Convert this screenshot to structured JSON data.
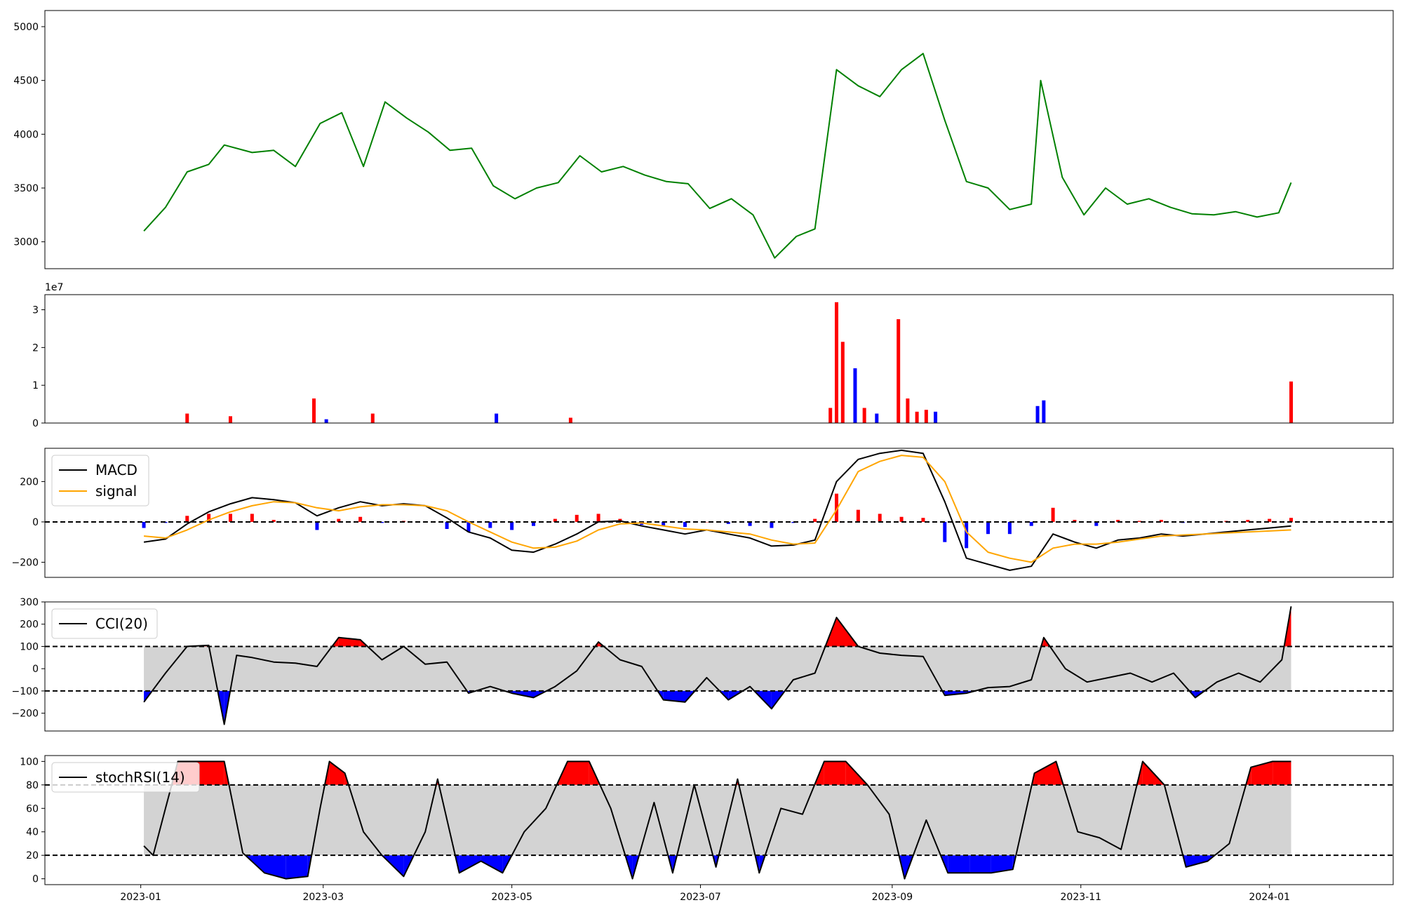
{
  "chart_data": [
    {
      "type": "line",
      "panel": "price",
      "color": "#008000",
      "ylim": [
        2750,
        5150
      ],
      "yticks": [
        "3000",
        "3500",
        "4000",
        "4500",
        "5000"
      ],
      "x": [
        "2023-01-02",
        "2023-01-09",
        "2023-01-16",
        "2023-01-23",
        "2023-01-28",
        "2023-02-06",
        "2023-02-13",
        "2023-02-20",
        "2023-02-28",
        "2023-03-07",
        "2023-03-14",
        "2023-03-21",
        "2023-03-28",
        "2023-04-04",
        "2023-04-11",
        "2023-04-18",
        "2023-04-25",
        "2023-05-02",
        "2023-05-09",
        "2023-05-16",
        "2023-05-23",
        "2023-05-30",
        "2023-06-06",
        "2023-06-13",
        "2023-06-20",
        "2023-06-27",
        "2023-07-04",
        "2023-07-11",
        "2023-07-18",
        "2023-07-25",
        "2023-08-01",
        "2023-08-07",
        "2023-08-14",
        "2023-08-21",
        "2023-08-28",
        "2023-09-04",
        "2023-09-11",
        "2023-09-18",
        "2023-09-25",
        "2023-10-02",
        "2023-10-09",
        "2023-10-16",
        "2023-10-19",
        "2023-10-26",
        "2023-11-02",
        "2023-11-09",
        "2023-11-16",
        "2023-11-23",
        "2023-11-30",
        "2023-12-07",
        "2023-12-14",
        "2023-12-21",
        "2023-12-28",
        "2024-01-04",
        "2024-01-08"
      ],
      "values": [
        3100,
        3320,
        3650,
        3720,
        3900,
        3830,
        3850,
        3700,
        4100,
        4200,
        3700,
        4300,
        4150,
        4020,
        3850,
        3870,
        3520,
        3400,
        3500,
        3550,
        3800,
        3650,
        3700,
        3620,
        3560,
        3540,
        3310,
        3400,
        3250,
        2850,
        3050,
        3120,
        4600,
        4450,
        4350,
        4600,
        4750,
        4130,
        3560,
        3500,
        3300,
        3350,
        4500,
        3600,
        3250,
        3500,
        3350,
        3400,
        3320,
        3260,
        3250,
        3280,
        3230,
        3270,
        3550
      ]
    },
    {
      "type": "bar",
      "panel": "volume",
      "multiplier_label": "1e7",
      "ylim": [
        0,
        3.4
      ],
      "yticks": [
        "0",
        "1",
        "2",
        "3"
      ],
      "colors": {
        "up": "#ff0000",
        "down": "#0000ff"
      },
      "x": [
        "2023-01-16",
        "2023-01-30",
        "2023-02-26",
        "2023-03-02",
        "2023-03-17",
        "2023-04-26",
        "2023-05-20",
        "2023-08-12",
        "2023-08-14",
        "2023-08-16",
        "2023-08-20",
        "2023-08-23",
        "2023-08-27",
        "2023-09-03",
        "2023-09-06",
        "2023-09-09",
        "2023-09-12",
        "2023-09-15",
        "2023-10-18",
        "2023-10-20",
        "2024-01-08"
      ],
      "values": [
        0.25,
        0.18,
        0.65,
        0.1,
        0.25,
        0.25,
        0.14,
        0.4,
        3.2,
        2.15,
        1.45,
        0.4,
        0.25,
        2.75,
        0.65,
        0.3,
        0.35,
        0.3,
        0.45,
        0.6,
        1.1
      ],
      "direction": [
        "up",
        "up",
        "up",
        "down",
        "up",
        "down",
        "up",
        "up",
        "up",
        "up",
        "down",
        "up",
        "down",
        "up",
        "up",
        "up",
        "up",
        "down",
        "down",
        "down",
        "up"
      ]
    },
    {
      "type": "line",
      "panel": "macd",
      "ylim": [
        -275,
        365
      ],
      "yticks": [
        "−200",
        "0",
        "200"
      ],
      "legend": [
        "MACD",
        "signal"
      ],
      "legend_position": "upper-left",
      "series": [
        {
          "name": "MACD",
          "color": "#000000",
          "x": [
            "2023-01-02",
            "2023-01-09",
            "2023-01-16",
            "2023-01-23",
            "2023-01-30",
            "2023-02-06",
            "2023-02-13",
            "2023-02-20",
            "2023-02-27",
            "2023-03-06",
            "2023-03-13",
            "2023-03-20",
            "2023-03-27",
            "2023-04-03",
            "2023-04-10",
            "2023-04-17",
            "2023-04-24",
            "2023-05-01",
            "2023-05-08",
            "2023-05-15",
            "2023-05-22",
            "2023-05-29",
            "2023-06-05",
            "2023-06-12",
            "2023-06-19",
            "2023-06-26",
            "2023-07-03",
            "2023-07-10",
            "2023-07-17",
            "2023-07-24",
            "2023-07-31",
            "2023-08-07",
            "2023-08-14",
            "2023-08-21",
            "2023-08-28",
            "2023-09-04",
            "2023-09-11",
            "2023-09-18",
            "2023-09-25",
            "2023-10-02",
            "2023-10-09",
            "2023-10-16",
            "2023-10-23",
            "2023-10-30",
            "2023-11-06",
            "2023-11-13",
            "2023-11-20",
            "2023-11-27",
            "2023-12-04",
            "2023-12-11",
            "2023-12-18",
            "2023-12-25",
            "2024-01-01",
            "2024-01-08"
          ],
          "values": [
            -100,
            -85,
            -10,
            50,
            90,
            120,
            110,
            95,
            30,
            70,
            100,
            80,
            90,
            80,
            20,
            -50,
            -80,
            -140,
            -150,
            -110,
            -60,
            0,
            5,
            -20,
            -40,
            -60,
            -40,
            -60,
            -80,
            -120,
            -115,
            -90,
            200,
            310,
            340,
            355,
            340,
            100,
            -180,
            -210,
            -240,
            -220,
            -60,
            -100,
            -130,
            -90,
            -80,
            -60,
            -70,
            -60,
            -50,
            -40,
            -30,
            -20
          ]
        },
        {
          "name": "signal",
          "color": "#ffa500",
          "x": [
            "2023-01-02",
            "2023-01-09",
            "2023-01-16",
            "2023-01-23",
            "2023-01-30",
            "2023-02-06",
            "2023-02-13",
            "2023-02-20",
            "2023-02-27",
            "2023-03-06",
            "2023-03-13",
            "2023-03-20",
            "2023-03-27",
            "2023-04-03",
            "2023-04-10",
            "2023-04-17",
            "2023-04-24",
            "2023-05-01",
            "2023-05-08",
            "2023-05-15",
            "2023-05-22",
            "2023-05-29",
            "2023-06-05",
            "2023-06-12",
            "2023-06-19",
            "2023-06-26",
            "2023-07-03",
            "2023-07-10",
            "2023-07-17",
            "2023-07-24",
            "2023-07-31",
            "2023-08-07",
            "2023-08-14",
            "2023-08-21",
            "2023-08-28",
            "2023-09-04",
            "2023-09-11",
            "2023-09-18",
            "2023-09-25",
            "2023-10-02",
            "2023-10-09",
            "2023-10-16",
            "2023-10-23",
            "2023-10-30",
            "2023-11-06",
            "2023-11-13",
            "2023-11-20",
            "2023-11-27",
            "2023-12-04",
            "2023-12-11",
            "2023-12-18",
            "2023-12-25",
            "2024-01-01",
            "2024-01-08"
          ],
          "values": [
            -70,
            -80,
            -40,
            10,
            50,
            80,
            100,
            95,
            70,
            55,
            75,
            85,
            85,
            80,
            55,
            0,
            -50,
            -100,
            -130,
            -125,
            -95,
            -40,
            -10,
            -5,
            -20,
            -35,
            -40,
            -50,
            -60,
            -90,
            -110,
            -105,
            60,
            250,
            300,
            330,
            320,
            200,
            -50,
            -150,
            -180,
            -200,
            -130,
            -110,
            -110,
            -100,
            -85,
            -70,
            -65,
            -60,
            -55,
            -50,
            -45,
            -40
          ]
        }
      ],
      "histogram": {
        "colors": {
          "positive": "#ff0000",
          "negative": "#0000ff"
        },
        "x": [
          "2023-01-02",
          "2023-01-09",
          "2023-01-16",
          "2023-01-23",
          "2023-01-30",
          "2023-02-06",
          "2023-02-13",
          "2023-02-20",
          "2023-02-27",
          "2023-03-06",
          "2023-03-13",
          "2023-03-20",
          "2023-03-27",
          "2023-04-03",
          "2023-04-10",
          "2023-04-17",
          "2023-04-24",
          "2023-05-01",
          "2023-05-08",
          "2023-05-15",
          "2023-05-22",
          "2023-05-29",
          "2023-06-05",
          "2023-06-12",
          "2023-06-19",
          "2023-06-26",
          "2023-07-03",
          "2023-07-10",
          "2023-07-17",
          "2023-07-24",
          "2023-07-31",
          "2023-08-07",
          "2023-08-14",
          "2023-08-21",
          "2023-08-28",
          "2023-09-04",
          "2023-09-11",
          "2023-09-18",
          "2023-09-25",
          "2023-10-02",
          "2023-10-09",
          "2023-10-16",
          "2023-10-23",
          "2023-10-30",
          "2023-11-06",
          "2023-11-13",
          "2023-11-20",
          "2023-11-27",
          "2023-12-04",
          "2023-12-11",
          "2023-12-18",
          "2023-12-25",
          "2024-01-01",
          "2024-01-08"
        ],
        "values": [
          -30,
          -5,
          30,
          40,
          40,
          40,
          10,
          0,
          -40,
          15,
          25,
          -5,
          5,
          0,
          -35,
          -50,
          -30,
          -40,
          -20,
          15,
          35,
          40,
          15,
          -15,
          -20,
          -25,
          0,
          -10,
          -20,
          -30,
          -5,
          15,
          140,
          60,
          40,
          25,
          20,
          -100,
          -130,
          -60,
          -60,
          -20,
          70,
          10,
          -20,
          10,
          5,
          10,
          -5,
          0,
          5,
          10,
          15,
          20
        ]
      }
    },
    {
      "type": "line",
      "panel": "cci",
      "color": "#000000",
      "ylim": [
        -280,
        300
      ],
      "yticks": [
        "−200",
        "−100",
        "0",
        "100",
        "200",
        "300"
      ],
      "thresholds": [
        100,
        -100
      ],
      "legend": [
        "CCI(20)"
      ],
      "legend_position": "upper-left",
      "fill_colors": {
        "band": "#d3d3d3",
        "above": "#ff0000",
        "below": "#0000ff"
      },
      "x": [
        "2023-01-02",
        "2023-01-09",
        "2023-01-16",
        "2023-01-23",
        "2023-01-28",
        "2023-02-01",
        "2023-02-06",
        "2023-02-13",
        "2023-02-20",
        "2023-02-27",
        "2023-03-06",
        "2023-03-13",
        "2023-03-20",
        "2023-03-27",
        "2023-04-03",
        "2023-04-10",
        "2023-04-17",
        "2023-04-24",
        "2023-05-01",
        "2023-05-08",
        "2023-05-15",
        "2023-05-22",
        "2023-05-29",
        "2023-06-05",
        "2023-06-12",
        "2023-06-19",
        "2023-06-26",
        "2023-07-03",
        "2023-07-10",
        "2023-07-17",
        "2023-07-24",
        "2023-07-31",
        "2023-08-07",
        "2023-08-14",
        "2023-08-21",
        "2023-08-28",
        "2023-09-04",
        "2023-09-11",
        "2023-09-18",
        "2023-09-25",
        "2023-10-02",
        "2023-10-09",
        "2023-10-16",
        "2023-10-20",
        "2023-10-27",
        "2023-11-03",
        "2023-11-10",
        "2023-11-17",
        "2023-11-24",
        "2023-12-01",
        "2023-12-08",
        "2023-12-15",
        "2023-12-22",
        "2023-12-29",
        "2024-01-05",
        "2024-01-08"
      ],
      "values": [
        -150,
        -20,
        100,
        105,
        -250,
        60,
        50,
        30,
        25,
        10,
        140,
        130,
        40,
        100,
        20,
        30,
        -110,
        -80,
        -110,
        -130,
        -80,
        -10,
        120,
        40,
        10,
        -140,
        -150,
        -40,
        -140,
        -80,
        -180,
        -50,
        -20,
        230,
        100,
        70,
        60,
        55,
        -120,
        -110,
        -85,
        -80,
        -50,
        140,
        0,
        -60,
        -40,
        -20,
        -60,
        -20,
        -130,
        -60,
        -20,
        -60,
        40,
        280
      ]
    },
    {
      "type": "line",
      "panel": "stochrsi",
      "color": "#000000",
      "ylim": [
        -5,
        105
      ],
      "yticks": [
        "0",
        "20",
        "40",
        "60",
        "80",
        "100"
      ],
      "thresholds": [
        80,
        20
      ],
      "legend": [
        "stochRSI(14)"
      ],
      "legend_position": "upper-left",
      "fill_colors": {
        "band": "#d3d3d3",
        "above": "#ff0000",
        "below": "#0000ff"
      },
      "x": [
        "2023-01-02",
        "2023-01-05",
        "2023-01-09",
        "2023-01-13",
        "2023-01-20",
        "2023-01-28",
        "2023-02-03",
        "2023-02-10",
        "2023-02-17",
        "2023-02-24",
        "2023-02-28",
        "2023-03-03",
        "2023-03-08",
        "2023-03-14",
        "2023-03-20",
        "2023-03-27",
        "2023-04-03",
        "2023-04-07",
        "2023-04-14",
        "2023-04-21",
        "2023-04-28",
        "2023-05-05",
        "2023-05-12",
        "2023-05-19",
        "2023-05-26",
        "2023-06-02",
        "2023-06-09",
        "2023-06-16",
        "2023-06-22",
        "2023-06-29",
        "2023-07-06",
        "2023-07-13",
        "2023-07-20",
        "2023-07-27",
        "2023-08-03",
        "2023-08-10",
        "2023-08-17",
        "2023-08-24",
        "2023-08-31",
        "2023-09-05",
        "2023-09-12",
        "2023-09-19",
        "2023-09-26",
        "2023-10-03",
        "2023-10-10",
        "2023-10-17",
        "2023-10-24",
        "2023-10-31",
        "2023-11-07",
        "2023-11-14",
        "2023-11-21",
        "2023-11-28",
        "2023-12-05",
        "2023-12-12",
        "2023-12-19",
        "2023-12-26",
        "2024-01-02",
        "2024-01-08"
      ],
      "values": [
        28,
        20,
        60,
        100,
        100,
        100,
        22,
        5,
        0,
        2,
        60,
        100,
        90,
        40,
        20,
        2,
        40,
        85,
        5,
        15,
        5,
        40,
        60,
        100,
        100,
        60,
        0,
        65,
        5,
        80,
        10,
        85,
        5,
        60,
        55,
        100,
        100,
        80,
        55,
        0,
        50,
        5,
        5,
        5,
        8,
        90,
        100,
        40,
        35,
        25,
        100,
        80,
        10,
        15,
        30,
        95,
        100,
        100
      ]
    },
    {
      "type": "axis",
      "panel": "shared-x",
      "xlim": [
        "2022-12-01",
        "2024-02-10"
      ],
      "xticks": [
        "2023-01",
        "2023-03",
        "2023-05",
        "2023-07",
        "2023-09",
        "2023-11",
        "2024-01"
      ]
    }
  ]
}
